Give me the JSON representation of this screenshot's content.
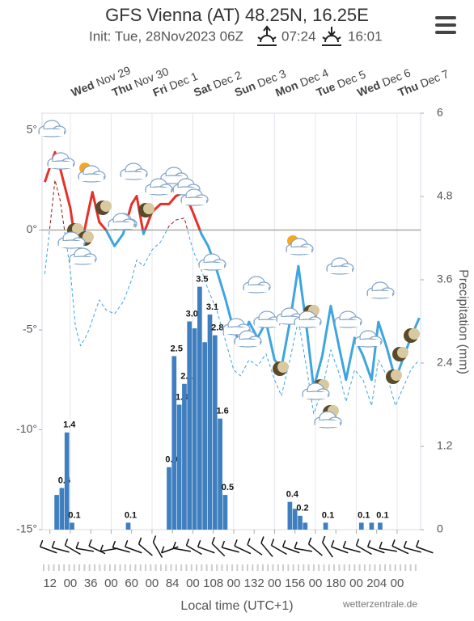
{
  "chart_data": {
    "type": "line",
    "title": "GFS Vienna (AT) 48.25N, 16.25E",
    "subtitle": "Init: Tue, 28Nov2023 06Z",
    "sunrise": "07:24",
    "sunset": "16:01",
    "x_label": "Local time (UTC+1)",
    "credit": "wetterzentrale.de",
    "y2_label": "Precipitation (mm)",
    "xlim": [
      7.4,
      229.8
    ],
    "xticks": [
      12,
      {
        "value": 24,
        "label": "00"
      },
      36,
      {
        "value": 48,
        "label": "00"
      },
      60,
      {
        "value": 72,
        "label": "00"
      },
      84,
      {
        "value": 96,
        "label": "00"
      },
      108,
      {
        "value": 120,
        "label": "00"
      },
      132,
      {
        "value": 144,
        "label": "00"
      },
      156,
      {
        "value": 168,
        "label": "00"
      },
      180,
      {
        "value": 192,
        "label": "00"
      },
      204,
      {
        "value": 216,
        "label": "00"
      }
    ],
    "day_labels": [
      {
        "value": 24,
        "day": "Wed",
        "date": "Nov 29"
      },
      {
        "value": 48,
        "day": "Thu",
        "date": "Nov 30"
      },
      {
        "value": 72,
        "day": "Fri",
        "date": "Dec 1"
      },
      {
        "value": 96,
        "day": "Sat",
        "date": "Dec 2"
      },
      {
        "value": 120,
        "day": "Sun",
        "date": "Dec 3"
      },
      {
        "value": 144,
        "day": "Mon",
        "date": "Dec 4"
      },
      {
        "value": 168,
        "day": "Tue",
        "date": "Dec 5"
      },
      {
        "value": 192,
        "day": "Wed",
        "date": "Dec 6"
      },
      {
        "value": 216,
        "day": "Thu",
        "date": "Dec 7"
      }
    ],
    "ylim": [
      -15,
      5.85
    ],
    "yticks": [
      {
        "value": 5,
        "label": "5°"
      },
      {
        "value": 0,
        "label": "0°"
      },
      {
        "value": -5,
        "label": "-5°"
      },
      {
        "value": -10,
        "label": "-10°"
      },
      {
        "value": -15,
        "label": "-15°"
      }
    ],
    "y2lim": [
      0,
      6
    ],
    "y2ticks": [
      0,
      1.2,
      2.4,
      3.6,
      4.8,
      6
    ],
    "temperature": {
      "color": "#e8302a",
      "color_below": "#3ea5df",
      "x": [
        9,
        15,
        18,
        24,
        27,
        30,
        34,
        37,
        41,
        45,
        50,
        55,
        60,
        63,
        67,
        72,
        77,
        82,
        86,
        91,
        96,
        101,
        105,
        110,
        115,
        120,
        124,
        129,
        134,
        139,
        144,
        148,
        153,
        158,
        163,
        167,
        172,
        177,
        182,
        186,
        191,
        196,
        201,
        205,
        210,
        215,
        220,
        224,
        229
      ],
      "values": [
        2.4,
        3.9,
        3.1,
        1.1,
        -0.6,
        -1,
        0.7,
        1.9,
        0.4,
        0,
        -0.8,
        -0.2,
        1.3,
        1.7,
        -0.2,
        0.9,
        1.3,
        1.3,
        1.7,
        1.9,
        0.9,
        -0.2,
        -0.8,
        -2,
        -3.4,
        -5,
        -5.7,
        -4.6,
        -5.4,
        -4.6,
        -6.5,
        -6.9,
        -4.6,
        -1.8,
        -5,
        -7.9,
        -6.3,
        -3.8,
        -5.9,
        -7.5,
        -5.4,
        -6.3,
        -7.5,
        -4.6,
        -5.9,
        -7.5,
        -6.3,
        -5.4,
        -4.4
      ]
    },
    "dewpoint": {
      "color": "#8b1a1a",
      "color_below": "#3ea5df",
      "x": [
        9,
        15,
        18,
        24,
        27,
        30,
        34,
        37,
        41,
        45,
        50,
        55,
        60,
        63,
        67,
        72,
        77,
        82,
        86,
        91,
        96,
        101,
        105,
        110,
        115,
        120,
        124,
        129,
        134,
        139,
        144,
        148,
        153,
        158,
        163,
        167,
        172,
        177,
        182,
        186,
        191,
        196,
        201,
        205,
        210,
        215,
        220,
        224,
        229
      ],
      "values": [
        -2.2,
        2.5,
        1.5,
        -2,
        -4.8,
        -5.8,
        -5.2,
        -4.5,
        -3.5,
        -4,
        -4.2,
        -3.6,
        -2.5,
        -1.5,
        -1.8,
        -1,
        -0.6,
        0.2,
        0.5,
        0.6,
        -1,
        -2,
        -3,
        -4,
        -5.5,
        -7,
        -7.3,
        -6.5,
        -6.8,
        -6.2,
        -7.5,
        -8.3,
        -6.5,
        -4.5,
        -7,
        -9.2,
        -8,
        -6,
        -7.2,
        -8.6,
        -7,
        -7.5,
        -8.8,
        -6.5,
        -7.3,
        -8.8,
        -7.8,
        -7,
        -6.5
      ]
    },
    "precipitation": {
      "color": "#3f7fbf",
      "axis": "y2",
      "x": [
        16,
        19,
        22,
        25,
        58,
        82,
        85,
        88,
        91,
        94,
        97,
        100,
        103,
        106,
        109,
        112,
        115,
        153,
        156,
        159,
        162,
        174,
        195,
        201,
        206
      ],
      "values": [
        0.5,
        0.6,
        1.4,
        0.1,
        0.1,
        0.9,
        2.5,
        1.8,
        2.1,
        3.0,
        2.9,
        3.5,
        2.7,
        3.1,
        2.8,
        1.6,
        0.5,
        0.4,
        0.3,
        0.2,
        0.1,
        0.1,
        0.1,
        0.1,
        0.1
      ],
      "value_labels": [
        null,
        "0.6",
        "1.4",
        "0.1",
        "0.1",
        "0.9",
        "2.5",
        "1.8",
        "2.1",
        "3.0",
        null,
        "3.5",
        null,
        "3.1",
        "2.8",
        "1.6",
        "0.5",
        "0.4",
        null,
        "0.2",
        null,
        "0.1",
        "0.1",
        null,
        "0.1"
      ]
    }
  }
}
